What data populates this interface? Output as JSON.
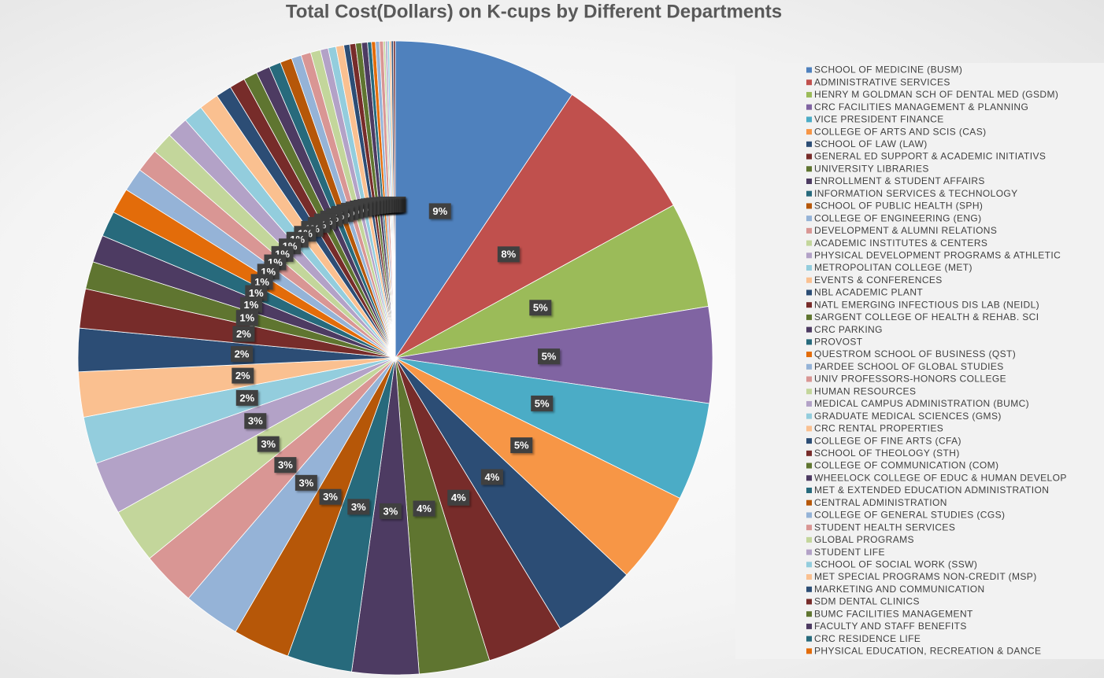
{
  "chart_data": {
    "type": "pie",
    "title": "Total Cost(Dollars) on K-cups by Different Departments",
    "categories": [
      "SCHOOL OF MEDICINE (BUSM)",
      "ADMINISTRATIVE SERVICES",
      "HENRY M GOLDMAN SCH OF DENTAL MED (GSDM)",
      "CRC FACILITIES MANAGEMENT & PLANNING",
      "VICE PRESIDENT FINANCE",
      "COLLEGE OF ARTS AND SCIS (CAS)",
      "SCHOOL OF LAW (LAW)",
      "GENERAL ED SUPPORT & ACADEMIC INITIATIVS",
      "UNIVERSITY LIBRARIES",
      "ENROLLMENT & STUDENT AFFAIRS",
      "INFORMATION SERVICES & TECHNOLOGY",
      "SCHOOL OF PUBLIC HEALTH (SPH)",
      "COLLEGE OF ENGINEERING (ENG)",
      "DEVELOPMENT & ALUMNI RELATIONS",
      "ACADEMIC INSTITUTES & CENTERS",
      "PHYSICAL DEVELOPMENT PROGRAMS & ATHLETIC",
      "METROPOLITAN COLLEGE (MET)",
      "EVENTS & CONFERENCES",
      "NBL ACADEMIC PLANT",
      "NATL EMERGING INFECTIOUS DIS LAB (NEIDL)",
      "SARGENT COLLEGE OF HEALTH & REHAB. SCI",
      "CRC PARKING",
      "PROVOST",
      "QUESTROM SCHOOL OF BUSINESS (QST)",
      "PARDEE SCHOOL OF GLOBAL STUDIES",
      "UNIV PROFESSORS-HONORS COLLEGE",
      "HUMAN RESOURCES",
      "MEDICAL CAMPUS ADMINISTRATION (BUMC)",
      "GRADUATE MEDICAL SCIENCES (GMS)",
      "CRC RENTAL PROPERTIES",
      "COLLEGE OF FINE ARTS (CFA)",
      "SCHOOL OF THEOLOGY (STH)",
      "COLLEGE OF COMMUNICATION (COM)",
      "WHEELOCK COLLEGE OF EDUC & HUMAN DEVELOP",
      "MET & EXTENDED EDUCATION ADMINISTRATION",
      "CENTRAL ADMINISTRATION",
      "COLLEGE OF GENERAL STUDIES (CGS)",
      "STUDENT HEALTH SERVICES",
      "GLOBAL PROGRAMS",
      "STUDENT LIFE",
      "SCHOOL OF SOCIAL WORK (SSW)",
      "MET SPECIAL PROGRAMS NON-CREDIT (MSP)",
      "MARKETING AND COMMUNICATION",
      "SDM DENTAL CLINICS",
      "BUMC FACILITIES MANAGEMENT",
      "FACULTY AND STAFF BENEFITS",
      "CRC RESIDENCE LIFE",
      "PHYSICAL EDUCATION, RECREATION & DANCE",
      null,
      null,
      null,
      null,
      null,
      null,
      null,
      null
    ],
    "values": [
      9.4,
      7.6,
      5.4,
      4.9,
      5.0,
      4.7,
      4.3,
      3.9,
      3.6,
      3.4,
      3.3,
      2.9,
      2.9,
      2.8,
      2.8,
      2.7,
      2.4,
      2.3,
      2.2,
      2.0,
      1.4,
      1.4,
      1.3,
      1.3,
      1.2,
      1.2,
      1.1,
      1.1,
      1.0,
      1.0,
      0.8,
      0.8,
      0.7,
      0.7,
      0.6,
      0.6,
      0.5,
      0.5,
      0.5,
      0.4,
      0.4,
      0.4,
      0.3,
      0.3,
      0.3,
      0.3,
      0.2,
      0.2,
      0.2,
      0.2,
      0.1,
      0.1,
      0.1,
      0.1,
      0.1,
      0.1
    ],
    "value_labels": [
      "9%",
      "8%",
      "5%",
      "5%",
      "5%",
      "5%",
      "4%",
      "4%",
      "4%",
      "3%",
      "3%",
      "3%",
      "3%",
      "3%",
      "3%",
      "3%",
      "2%",
      "2%",
      "2%",
      "2%",
      "1%",
      "1%",
      "1%",
      "1%",
      "1%",
      "1%",
      "1%",
      "1%",
      "1%",
      "1%",
      "1%",
      "1%",
      "1%",
      "1%",
      "1%",
      "1%",
      "1%",
      "1%",
      "1%",
      "0%",
      "0%",
      "0%",
      "0%",
      "0%",
      "0%",
      "0%",
      "0%",
      "0%",
      "0%",
      "0%",
      "0%",
      "0%",
      "0%",
      "0%",
      "0%",
      "0%"
    ],
    "colors": [
      "#4F81BD",
      "#C0504D",
      "#9BBB59",
      "#8064A2",
      "#4BACC6",
      "#F79646",
      "#2C4D75",
      "#772C2A",
      "#5F7530",
      "#4D3B62",
      "#276A7C",
      "#B65708",
      "#95B3D7",
      "#D99694",
      "#C3D69B",
      "#B3A2C7",
      "#93CDDD",
      "#FAC090",
      "#2C4D75",
      "#772C2A",
      "#5F7530",
      "#4D3B62",
      "#276A7C",
      "#E36C0A",
      "#95B3D7",
      "#D99694",
      "#C3D69B",
      "#B3A2C7",
      "#93CDDD",
      "#FAC090",
      "#2C4D75",
      "#772C2A",
      "#5F7530",
      "#4D3B62",
      "#276A7C",
      "#B65708",
      "#95B3D7",
      "#D99694",
      "#C3D69B",
      "#B3A2C7",
      "#93CDDD",
      "#FAC090",
      "#2C4D75",
      "#772C2A",
      "#5F7530",
      "#4D3B62",
      "#276A7C",
      "#E36C0A",
      "#95B3D7",
      "#D99694",
      "#C3D69B",
      "#B3A2C7",
      "#93CDDD",
      "#FAC090",
      "#2C4D75",
      "#772C2A"
    ],
    "legend": "right"
  }
}
